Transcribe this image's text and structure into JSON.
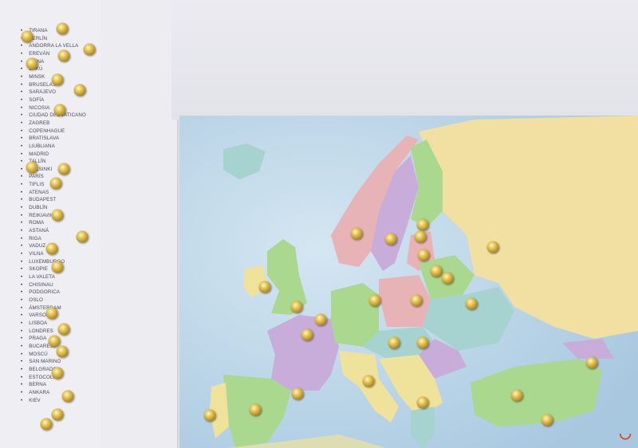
{
  "capitals": [
    "TIRANA",
    "BERLÍN",
    "ANDORRA LA VELLA",
    "EREVÁN",
    "VIENA",
    "BAKÚ",
    "MINSK",
    "BRUSELAS",
    "SARAJEVO",
    "SOFÍA",
    "NICOSIA",
    "CIUDAD DEL VATICANO",
    "ZAGREB",
    "COPENHAGUE",
    "BRATISLAVA",
    "LIUBLIANA",
    "MADRID",
    "TALLÍN",
    "HELSINKI",
    "PARÍS",
    "TIFLIS",
    "ATENAS",
    "BUDAPEST",
    "DUBLÍN",
    "REIKIAVIK",
    "ROMA",
    "ASTANÁ",
    "RIGA",
    "VADUZ",
    "VILNA",
    "LUXEMBURGO",
    "SKOPIE",
    "LA VALETA",
    "CHISINAU",
    "PODGORICA",
    "OSLO",
    "ÁMSTERDAM",
    "VARSOVIA",
    "LISBOA",
    "LONDRES",
    "PRAGA",
    "BUCAREST",
    "MOSCÚ",
    "SAN MARINO",
    "BELGRADO",
    "ESTOCOLMO",
    "BERNA",
    "ANKARA",
    "KIEV"
  ],
  "colors": {
    "sea": "#b9d3e6",
    "pin": "#d9b84a",
    "russia": "#f1e0a2",
    "green": "#a9d88e",
    "pink": "#e8b3b6",
    "purple": "#c8acd9",
    "teal": "#a6d3cf",
    "yellow": "#efe39c"
  },
  "watermark": "◡"
}
